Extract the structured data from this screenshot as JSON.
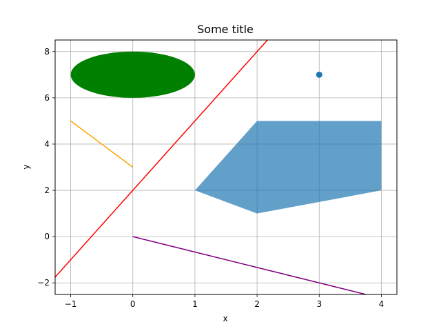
{
  "chart_data": {
    "type": "line",
    "title": "Some title",
    "xlabel": "x",
    "ylabel": "y",
    "xlim": [
      -1.25,
      4.25
    ],
    "ylim": [
      -2.5,
      8.5
    ],
    "grid": true,
    "x_ticks": [
      -1,
      0,
      1,
      2,
      3,
      4
    ],
    "x_tick_labels": [
      "−1",
      "0",
      "1",
      "2",
      "3",
      "4"
    ],
    "y_ticks": [
      -2,
      0,
      2,
      4,
      6,
      8
    ],
    "y_tick_labels": [
      "−2",
      "0",
      "2",
      "4",
      "6",
      "8"
    ],
    "elements": {
      "ellipse": {
        "center": [
          0,
          7
        ],
        "width": 2,
        "height": 2,
        "color": "#008000"
      },
      "polygon": {
        "points": [
          [
            1,
            2
          ],
          [
            2,
            5
          ],
          [
            4,
            5
          ],
          [
            4,
            2
          ],
          [
            2,
            1
          ]
        ],
        "color": "#1f77b4",
        "alpha": 0.7
      },
      "point": {
        "x": 3,
        "y": 7,
        "color": "#1f77b4"
      },
      "orange_line": {
        "points": [
          [
            -1,
            5
          ],
          [
            0,
            3
          ]
        ],
        "color": "#ffa500"
      },
      "red_line": {
        "slope": 3,
        "intercept": 2,
        "color": "#ff0000"
      },
      "purple_line": {
        "points": [
          [
            0,
            0
          ],
          [
            3.75,
            -2.5
          ]
        ],
        "color": "#800080"
      }
    }
  }
}
